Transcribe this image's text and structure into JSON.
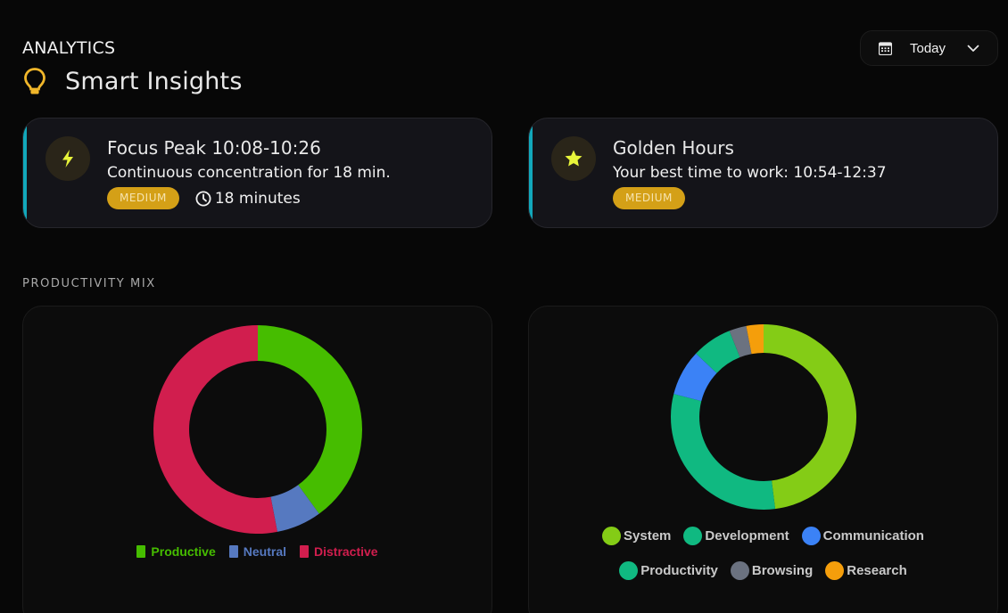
{
  "header": {
    "section": "ANALYTICS",
    "title": "Smart Insights",
    "title_icon": "lightbulb-icon",
    "date_range": {
      "icon": "calendar-icon",
      "value": "Today",
      "chevron": "chevron-down-icon"
    }
  },
  "insights": [
    {
      "icon": "lightning-icon",
      "title": "Focus Peak 10:08-10:26",
      "description": "Continuous concentration for 18 min.",
      "level": "MEDIUM",
      "duration_icon": "clock-icon",
      "duration": "18 minutes"
    },
    {
      "icon": "star-icon",
      "title": "Golden Hours",
      "description": "Your best time to work: 10:54-12:37",
      "level": "MEDIUM"
    }
  ],
  "productivity_mix": {
    "label": "PRODUCTIVITY MIX"
  },
  "colors": {
    "accent_border": "#12a8bb",
    "pill_bg": "#d4a017",
    "icon_yellow": "#e8f53a",
    "bulb": "#f0b62a"
  },
  "chart_data": [
    {
      "type": "pie",
      "title": "Productivity Mix",
      "donut": true,
      "categories": [
        "Productive",
        "Neutral",
        "Distractive"
      ],
      "values": [
        40,
        7,
        53
      ],
      "colors": [
        "#46bd00",
        "#5679c0",
        "#d11e4e"
      ],
      "legend_position": "bottom"
    },
    {
      "type": "pie",
      "title": "Category Breakdown",
      "donut": true,
      "categories": [
        "System",
        "Development",
        "Communication",
        "Productivity",
        "Browsing",
        "Research"
      ],
      "values": [
        48,
        31,
        8,
        7,
        3,
        3
      ],
      "colors": [
        "#84cc16",
        "#10b981",
        "#3b82f6",
        "#10b981",
        "#6b7280",
        "#f59e0b"
      ],
      "legend_position": "bottom"
    }
  ]
}
